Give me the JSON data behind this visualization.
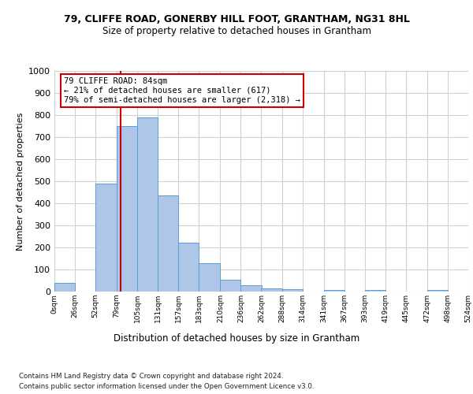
{
  "title1": "79, CLIFFE ROAD, GONERBY HILL FOOT, GRANTHAM, NG31 8HL",
  "title2": "Size of property relative to detached houses in Grantham",
  "xlabel": "Distribution of detached houses by size in Grantham",
  "ylabel": "Number of detached properties",
  "bin_edges": [
    0,
    26,
    52,
    79,
    105,
    131,
    157,
    183,
    210,
    236,
    262,
    288,
    314,
    341,
    367,
    393,
    419,
    445,
    472,
    498,
    524
  ],
  "bar_heights": [
    40,
    0,
    490,
    750,
    790,
    435,
    220,
    130,
    52,
    28,
    15,
    10,
    0,
    8,
    0,
    8,
    0,
    0,
    8,
    0
  ],
  "bar_color": "#aec6e8",
  "bar_edge_color": "#5a9fd4",
  "red_line_x": 84,
  "annotation_title": "79 CLIFFE ROAD: 84sqm",
  "annotation_line1": "← 21% of detached houses are smaller (617)",
  "annotation_line2": "79% of semi-detached houses are larger (2,318) →",
  "annotation_box_color": "#ffffff",
  "annotation_box_edge": "#cc0000",
  "red_line_color": "#cc0000",
  "grid_color": "#d0d0d0",
  "background_color": "#ffffff",
  "footer1": "Contains HM Land Registry data © Crown copyright and database right 2024.",
  "footer2": "Contains public sector information licensed under the Open Government Licence v3.0.",
  "ylim": [
    0,
    1000
  ],
  "yticks": [
    0,
    100,
    200,
    300,
    400,
    500,
    600,
    700,
    800,
    900,
    1000
  ]
}
